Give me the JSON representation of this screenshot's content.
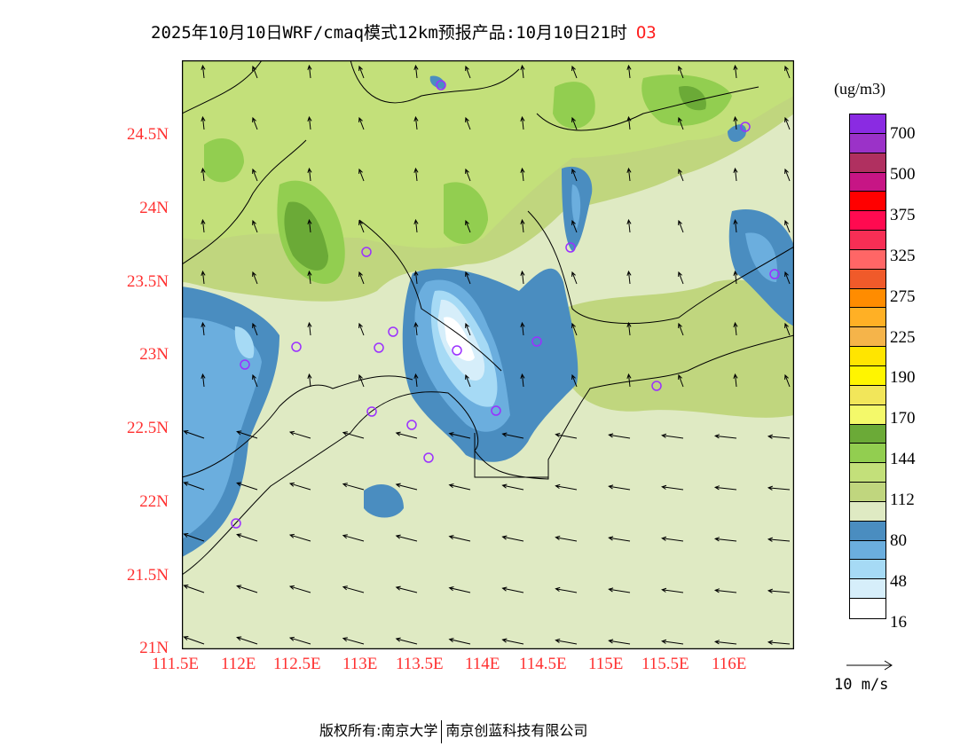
{
  "title": {
    "text": "2025年10月10日WRF/cmaq模式12km预报产品:10月10日21时",
    "species": "O3"
  },
  "axes": {
    "lat_labels": [
      "24.5N",
      "24N",
      "23.5N",
      "23N",
      "22.5N",
      "22N",
      "21.5N",
      "21N"
    ],
    "lon_labels": [
      "111.5E",
      "112E",
      "112.5E",
      "113E",
      "113.5E",
      "114E",
      "114.5E",
      "115E",
      "115.5E",
      "116E"
    ]
  },
  "colorbar": {
    "unit": "(ug/m3)",
    "colors": [
      "#8A2BE2",
      "#9B32C8",
      "#B03060",
      "#C71585",
      "#FF0000",
      "#FF0A50",
      "#F72E55",
      "#FF6666",
      "#F05A2A",
      "#FF8C00",
      "#FFB025",
      "#F5B44A",
      "#FFE500",
      "#FFF500",
      "#F2E65A",
      "#F4F96A",
      "#6BAA37",
      "#92CE50",
      "#C3E07A",
      "#C0D67E",
      "#DFEAC3",
      "#4A8DC0",
      "#6BAEDE",
      "#A6DAF5",
      "#D6EEFA",
      "#FFFFFF"
    ],
    "labels": [
      "700",
      "500",
      "375",
      "325",
      "275",
      "225",
      "190",
      "170",
      "144",
      "112",
      "80",
      "48",
      "16"
    ]
  },
  "wind_reference": "10 m/s",
  "footer": {
    "left": "版权所有:南京大学",
    "right": "南京创蓝科技有限公司"
  }
}
